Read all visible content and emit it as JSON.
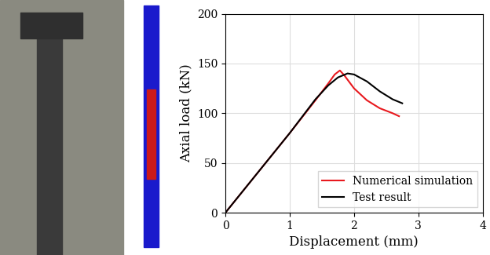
{
  "chart_data": {
    "type": "line",
    "x_label": "Displacement (mm)",
    "y_label": "Axial load (kN)",
    "xlim": [
      0,
      4
    ],
    "xticks": [
      0,
      1,
      2,
      3,
      4
    ],
    "ylim": [
      0,
      200
    ],
    "yticks": [
      0,
      50,
      100,
      150,
      200
    ],
    "grid": true,
    "legend": "lower right",
    "series": [
      {
        "name": "Numerical simulation",
        "color": "#e8191e",
        "x": [
          0,
          0.5,
          1.0,
          1.4,
          1.6,
          1.7,
          1.78,
          1.85,
          2.0,
          2.2,
          2.4,
          2.6,
          2.7
        ],
        "values": [
          0,
          40,
          80,
          113,
          130,
          139,
          143,
          138,
          125,
          113,
          105,
          100,
          97
        ]
      },
      {
        "name": "Test result",
        "color": "#000000",
        "x": [
          0,
          0.5,
          1.0,
          1.4,
          1.6,
          1.75,
          1.9,
          2.0,
          2.2,
          2.4,
          2.6,
          2.75
        ],
        "values": [
          0,
          40,
          80,
          114,
          128,
          136,
          140,
          139,
          132,
          122,
          114,
          110
        ]
      }
    ]
  }
}
